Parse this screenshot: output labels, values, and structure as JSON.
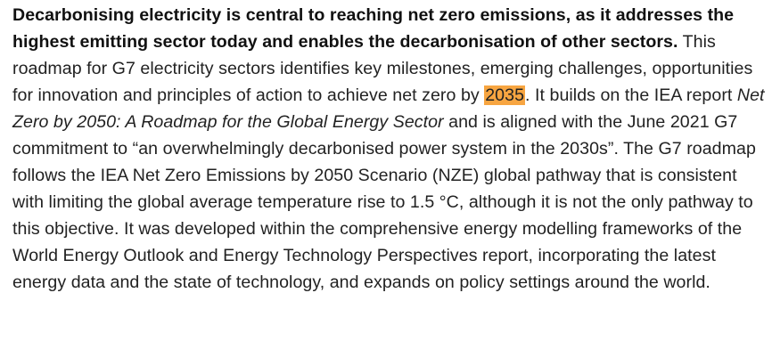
{
  "paragraph": {
    "lead_bold": "Decarbonising electricity is central to reaching net zero emissions, as it addresses the highest emitting sector today and enables the decarbonisation of other sectors.",
    "text_1": " This roadmap for G7 electricity sectors identifies key milestones, emerging challenges, opportunities for innovation and principles of action to achieve net zero by ",
    "highlighted_year": "2035",
    "text_2": ". It builds on the IEA report ",
    "report_title": "Net Zero by 2050: A Roadmap for the Global Energy Sector",
    "text_3": " and is aligned with the June 2021 G7 commitment to “an overwhelmingly decarbonised power system in the 2030s”. The G7 roadmap follows the IEA Net Zero Emissions by 2050 Scenario (NZE) global pathway that is consistent with limiting the global average temperature rise to 1.5 °C, although it is not the only pathway to this objective. It was developed within the comprehensive energy modelling frameworks of the World Energy Outlook and Energy Technology Perspectives report, incorporating the latest energy data and the state of technology, and expands on policy settings around the world."
  },
  "colors": {
    "highlight": "#f7a541",
    "text": "#222222"
  }
}
